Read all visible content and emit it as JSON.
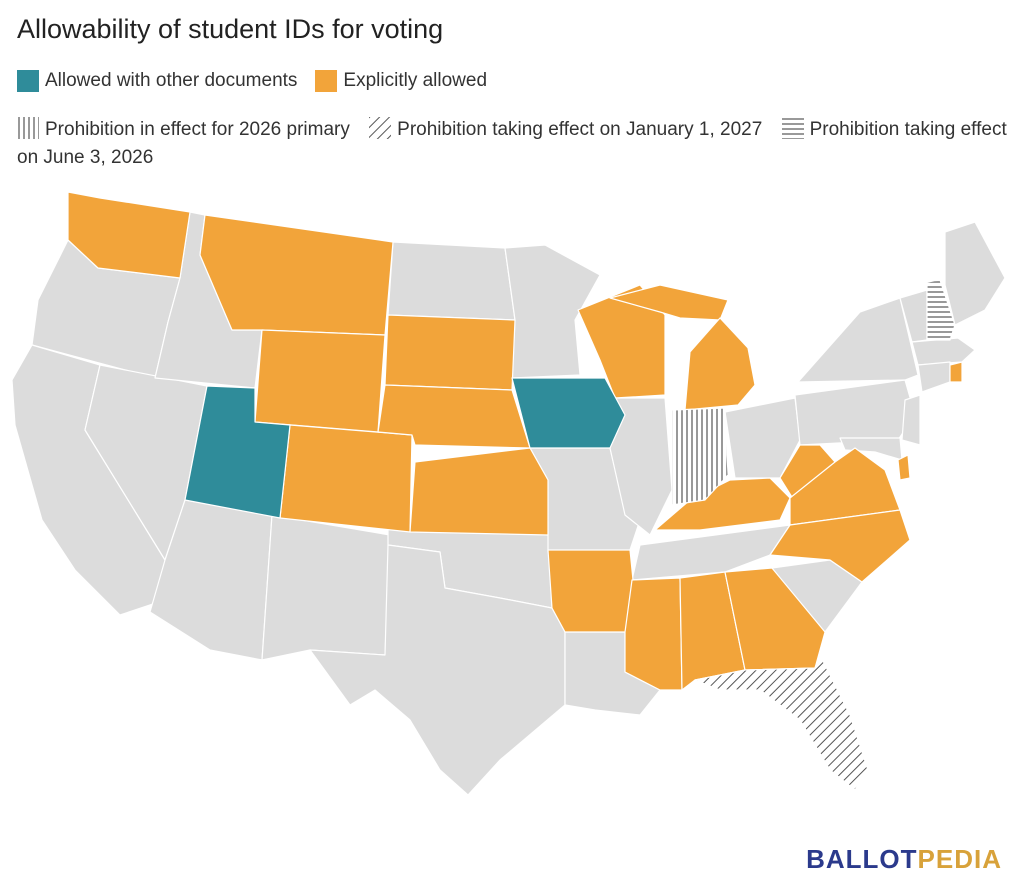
{
  "title": "Allowability of student IDs for voting",
  "legend": {
    "allowed_with_other_docs": {
      "label": "Allowed with other documents",
      "color": "#2f8c9a"
    },
    "explicitly_allowed": {
      "label": "Explicitly allowed",
      "color": "#f2a43a"
    }
  },
  "pattern_legend": {
    "vertical": {
      "label": "Prohibition in effect for 2026 primary",
      "pattern": "vertical-lines"
    },
    "diagonal": {
      "label": "Prohibition taking effect on January 1, 2027",
      "pattern": "diagonal-lines"
    },
    "horizontal": {
      "label": "Prohibition taking effect on June 3, 2026",
      "pattern": "horizontal-lines"
    }
  },
  "colors": {
    "default_state": "#dcdcdc",
    "border": "#ffffff"
  },
  "brand": {
    "part1": "BALLOT",
    "part2": "PEDIA",
    "color1": "#2b3a8c",
    "color2": "#d8a23a"
  }
}
